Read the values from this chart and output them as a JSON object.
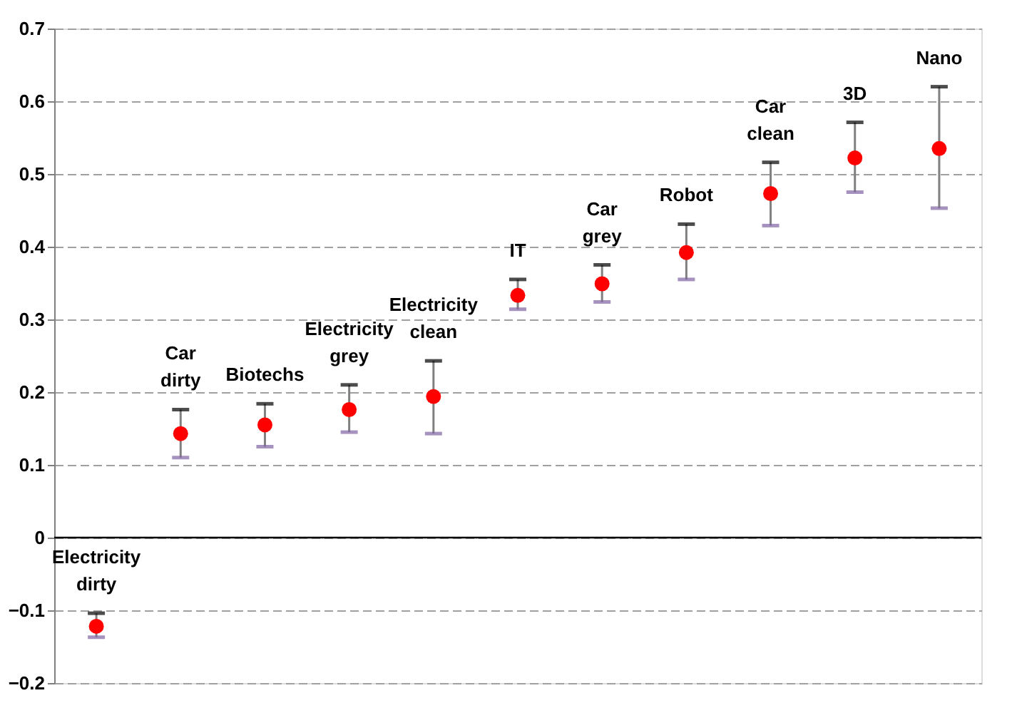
{
  "chart_data": {
    "type": "scatter",
    "categories": [
      "Electricity dirty",
      "Car dirty",
      "Biotechs",
      "Electricity grey",
      "Electricity clean",
      "IT",
      "Car grey",
      "Robot",
      "Car clean",
      "3D",
      "Nano"
    ],
    "values": [
      -0.122,
      0.143,
      0.155,
      0.176,
      0.194,
      0.333,
      0.349,
      0.392,
      0.473,
      0.522,
      0.535
    ],
    "errors": [
      [
        -0.137,
        -0.104
      ],
      [
        0.11,
        0.176
      ],
      [
        0.125,
        0.184
      ],
      [
        0.145,
        0.21
      ],
      [
        0.143,
        0.243
      ],
      [
        0.314,
        0.355
      ],
      [
        0.324,
        0.375
      ],
      [
        0.355,
        0.431
      ],
      [
        0.429,
        0.516
      ],
      [
        0.475,
        0.571
      ],
      [
        0.453,
        0.62
      ]
    ],
    "color": "#ff0000",
    "marker": "circle",
    "ylim": [
      -0.2,
      0.7
    ],
    "yticks": [
      -0.2,
      -0.1,
      0,
      0.1,
      0.2,
      0.3,
      0.4,
      0.5,
      0.6,
      0.7
    ],
    "ref_lines": [
      {
        "axis": "y",
        "value": 0,
        "color": "#000000"
      }
    ],
    "grid": "y",
    "tick_labels": "y"
  }
}
